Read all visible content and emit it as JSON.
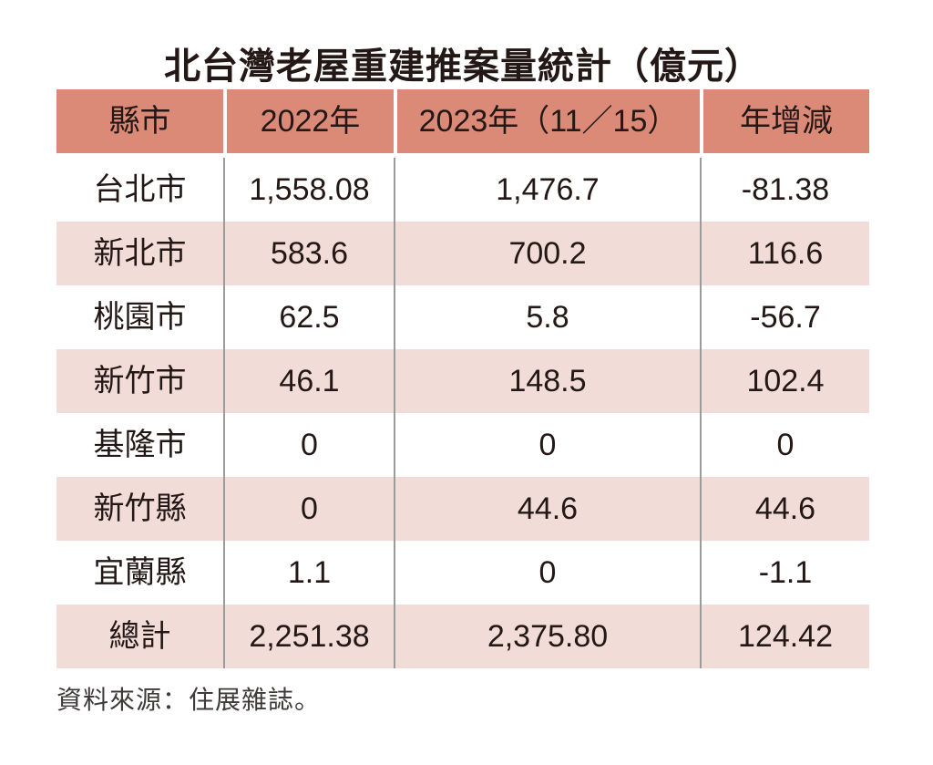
{
  "title": "北台灣老屋重建推案量統計（億元）",
  "table": {
    "columns": [
      "縣市",
      "2022年",
      "2023年（11／15）",
      "年增減"
    ],
    "rows": [
      [
        "台北市",
        "1,558.08",
        "1,476.7",
        "-81.38"
      ],
      [
        "新北市",
        "583.6",
        "700.2",
        "116.6"
      ],
      [
        "桃園市",
        "62.5",
        "5.8",
        "-56.7"
      ],
      [
        "新竹市",
        "46.1",
        "148.5",
        "102.4"
      ],
      [
        "基隆市",
        "0",
        "0",
        "0"
      ],
      [
        "新竹縣",
        "0",
        "44.6",
        "44.6"
      ],
      [
        "宜蘭縣",
        "1.1",
        "0",
        "-1.1"
      ],
      [
        "總計",
        "2,251.38",
        "2,375.80",
        "124.42"
      ]
    ]
  },
  "footer": {
    "source": "資料來源：住展雜誌。"
  },
  "colors": {
    "header_bg": "#DC8A78",
    "stripe_bg": "#F2DCD7",
    "divider": "#9B9B9B",
    "text": "#231815"
  },
  "chart_data": {
    "type": "table",
    "title": "北台灣老屋重建推案量統計（億元）",
    "unit": "億元",
    "categories": [
      "台北市",
      "新北市",
      "桃園市",
      "新竹市",
      "基隆市",
      "新竹縣",
      "宜蘭縣",
      "總計"
    ],
    "series": [
      {
        "name": "2022年",
        "values": [
          1558.08,
          583.6,
          62.5,
          46.1,
          0,
          0,
          1.1,
          2251.38
        ]
      },
      {
        "name": "2023年（11／15）",
        "values": [
          1476.7,
          700.2,
          5.8,
          148.5,
          0,
          44.6,
          0,
          2375.8
        ]
      },
      {
        "name": "年增減",
        "values": [
          -81.38,
          116.6,
          -56.7,
          102.4,
          0,
          44.6,
          -1.1,
          124.42
        ]
      }
    ],
    "source": "住展雜誌"
  }
}
